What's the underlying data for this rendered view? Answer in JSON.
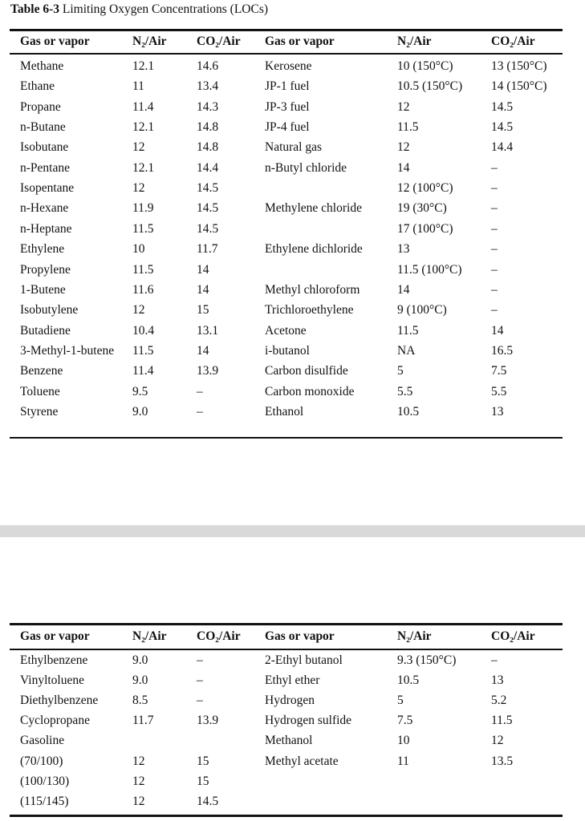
{
  "title": {
    "label": "Table 6-3",
    "text": "Limiting Oxygen Concentrations (LOCs)"
  },
  "tables": [
    {
      "header": [
        "Gas or vapor",
        "N₂/Air",
        "CO₂/Air",
        "Gas or vapor",
        "N₂/Air",
        "CO₂/Air"
      ],
      "rows": [
        [
          "Methane",
          "12.1",
          "14.6",
          "Kerosene",
          "10 (150°C)",
          "13 (150°C)"
        ],
        [
          "Ethane",
          "11",
          "13.4",
          "JP-1 fuel",
          "10.5 (150°C)",
          "14 (150°C)"
        ],
        [
          "Propane",
          "11.4",
          "14.3",
          "JP-3 fuel",
          "12",
          "14.5"
        ],
        [
          "n-Butane",
          "12.1",
          "14.8",
          "JP-4 fuel",
          "11.5",
          "14.5"
        ],
        [
          "Isobutane",
          "12",
          "14.8",
          "Natural gas",
          "12",
          "14.4"
        ],
        [
          "n-Pentane",
          "12.1",
          "14.4",
          "n-Butyl chloride",
          "14",
          "–"
        ],
        [
          "Isopentane",
          "12",
          "14.5",
          null,
          "12 (100°C)",
          "–"
        ],
        [
          "n-Hexane",
          "11.9",
          "14.5",
          "Methylene chloride",
          "19 (30°C)",
          "–"
        ],
        [
          "n-Heptane",
          "11.5",
          "14.5",
          null,
          "17 (100°C)",
          "–"
        ],
        [
          "Ethylene",
          "10",
          "11.7",
          "Ethylene dichloride",
          "13",
          "–"
        ],
        [
          "Propylene",
          "11.5",
          "14",
          null,
          "11.5 (100°C)",
          "–"
        ],
        [
          "1-Butene",
          "11.6",
          "14",
          "Methyl chloroform",
          "14",
          "–"
        ],
        [
          "Isobutylene",
          "12",
          "15",
          "Trichloroethylene",
          "9 (100°C)",
          "–"
        ],
        [
          "Butadiene",
          "10.4",
          "13.1",
          "Acetone",
          "11.5",
          "14"
        ],
        [
          "3-Methyl-1-butene",
          "11.5",
          "14",
          "i-butanol",
          "NA",
          "16.5"
        ],
        [
          "Benzene",
          "11.4",
          "13.9",
          "Carbon disulfide",
          "5",
          "7.5"
        ],
        [
          "Toluene",
          "9.5",
          "–",
          "Carbon monoxide",
          "5.5",
          "5.5"
        ],
        [
          "Styrene",
          "9.0",
          "–",
          "Ethanol",
          "10.5",
          "13"
        ]
      ]
    },
    {
      "header": [
        "Gas or vapor",
        "N₂/Air",
        "CO₂/Air",
        "Gas or vapor",
        "N₂/Air",
        "CO₂/Air"
      ],
      "rows": [
        [
          "Ethylbenzene",
          "9.0",
          "–",
          "2-Ethyl butanol",
          "9.3 (150°C)",
          "–"
        ],
        [
          "Vinyltoluene",
          "9.0",
          "–",
          "Ethyl ether",
          "10.5",
          "13"
        ],
        [
          "Diethylbenzene",
          "8.5",
          "–",
          "Hydrogen",
          "5",
          "5.2"
        ],
        [
          "Cyclopropane",
          "11.7",
          "13.9",
          "Hydrogen sulfide",
          "7.5",
          "11.5"
        ],
        [
          "Gasoline",
          null,
          null,
          "Methanol",
          "10",
          "12"
        ],
        [
          "(70/100)",
          "12",
          "15",
          "Methyl acetate",
          "11",
          "13.5"
        ],
        [
          "(100/130)",
          "12",
          "15",
          null,
          null,
          null
        ],
        [
          "(115/145)",
          "12",
          "14.5",
          null,
          null,
          null
        ]
      ]
    }
  ]
}
